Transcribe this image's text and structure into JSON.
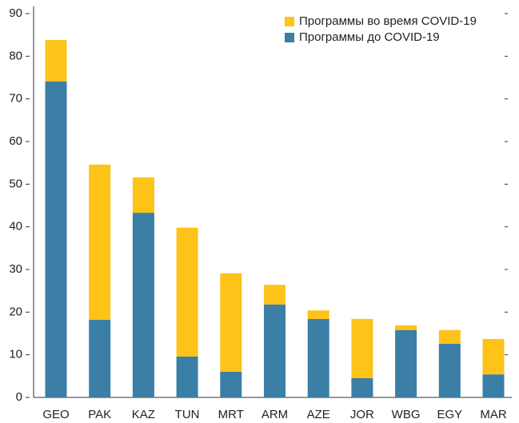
{
  "chart_data": {
    "type": "stacked_bar",
    "categories": [
      "GEO",
      "PAK",
      "KAZ",
      "TUN",
      "MRT",
      "ARM",
      "AZE",
      "JOR",
      "WBG",
      "EGY",
      "MAR"
    ],
    "series": [
      {
        "name": "Программы до COVID-19",
        "color": "#3b7ea6",
        "values": [
          74.1,
          18.2,
          43.3,
          9.6,
          6.0,
          21.8,
          18.4,
          4.5,
          15.8,
          12.6,
          5.4
        ]
      },
      {
        "name": "Программы во время COVID-19",
        "color": "#fdc319",
        "values": [
          9.7,
          36.4,
          8.3,
          30.2,
          23.1,
          4.6,
          2.0,
          13.9,
          1.1,
          3.2,
          8.3
        ]
      }
    ],
    "ylim": [
      0,
      90
    ],
    "yticks": [
      0,
      10,
      20,
      30,
      40,
      50,
      60,
      70,
      80,
      90
    ],
    "legend": "upper right"
  }
}
